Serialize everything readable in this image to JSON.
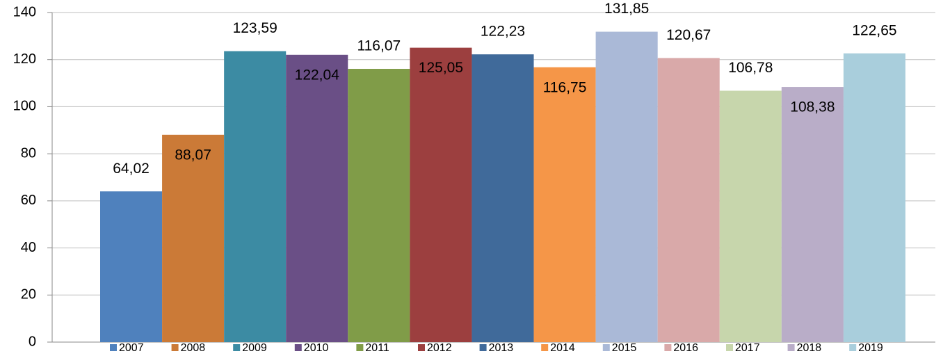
{
  "chart_data": {
    "type": "bar",
    "series": [
      {
        "name": "2007",
        "color": "#4f81bd",
        "values": [
          64.02
        ],
        "value_labels": [
          "64,02"
        ]
      },
      {
        "name": "2008",
        "color": "#cb7a37",
        "values": [
          88.07
        ],
        "value_labels": [
          "88,07"
        ]
      },
      {
        "name": "2009",
        "color": "#3c8ba3",
        "values": [
          123.59
        ],
        "value_labels": [
          "123,59"
        ]
      },
      {
        "name": "2010",
        "color": "#6a4f86",
        "values": [
          122.04
        ],
        "value_labels": [
          "122,04"
        ]
      },
      {
        "name": "2011",
        "color": "#809c48",
        "values": [
          116.07
        ],
        "value_labels": [
          "116,07"
        ]
      },
      {
        "name": "2012",
        "color": "#9c3f3f",
        "values": [
          125.05
        ],
        "value_labels": [
          "125,05"
        ]
      },
      {
        "name": "2013",
        "color": "#406a9a",
        "values": [
          122.23
        ],
        "value_labels": [
          "122,23"
        ]
      },
      {
        "name": "2014",
        "color": "#f59648",
        "values": [
          116.75
        ],
        "value_labels": [
          "116,75"
        ]
      },
      {
        "name": "2015",
        "color": "#aab9d7",
        "values": [
          131.85
        ],
        "value_labels": [
          "131,85"
        ]
      },
      {
        "name": "2016",
        "color": "#d9a9a9",
        "values": [
          120.67
        ],
        "value_labels": [
          "120,67"
        ]
      },
      {
        "name": "2017",
        "color": "#c7d6ac",
        "values": [
          106.78
        ],
        "value_labels": [
          "106,78"
        ]
      },
      {
        "name": "2018",
        "color": "#b9adc8",
        "values": [
          108.38
        ],
        "value_labels": [
          "108,38"
        ]
      },
      {
        "name": "2019",
        "color": "#a9cedc",
        "values": [
          122.65
        ],
        "value_labels": [
          "122,65"
        ]
      }
    ],
    "ylim": [
      0,
      140
    ],
    "yticks": [
      0,
      20,
      40,
      60,
      80,
      100,
      120,
      140
    ],
    "grid": true
  }
}
